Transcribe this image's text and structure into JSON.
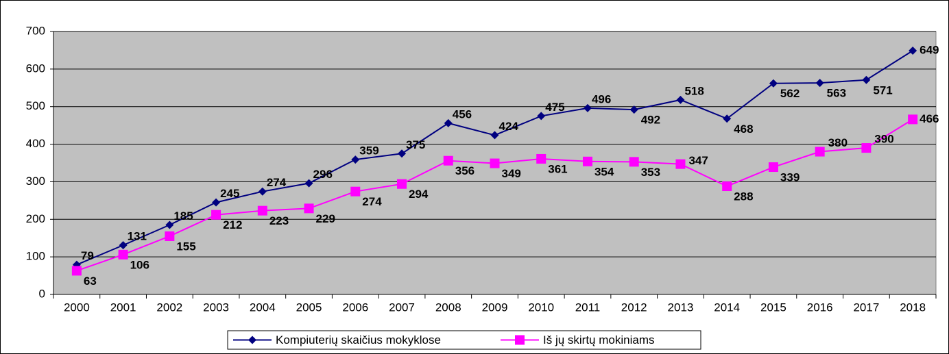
{
  "chart_data": {
    "type": "line",
    "categories": [
      "2000",
      "2001",
      "2002",
      "2003",
      "2004",
      "2005",
      "2006",
      "2007",
      "2008",
      "2009",
      "2010",
      "2011",
      "2012",
      "2013",
      "2014",
      "2015",
      "2016",
      "2017",
      "2018"
    ],
    "series": [
      {
        "name": "Kompiuterių skaičius mokyklose",
        "color": "#000080",
        "marker": "diamond",
        "values": [
          79,
          131,
          185,
          245,
          274,
          296,
          359,
          375,
          456,
          424,
          475,
          496,
          492,
          518,
          468,
          562,
          563,
          571,
          649
        ]
      },
      {
        "name": "Iš jų skirtų mokiniams",
        "color": "#ff00ff",
        "marker": "square",
        "values": [
          63,
          106,
          155,
          212,
          223,
          229,
          274,
          294,
          356,
          349,
          361,
          354,
          353,
          347,
          288,
          339,
          380,
          390,
          466
        ]
      }
    ],
    "ylim": [
      0,
      700
    ],
    "yticks": [
      0,
      100,
      200,
      300,
      400,
      500,
      600,
      700
    ],
    "grid": true,
    "legend": "bottom"
  }
}
